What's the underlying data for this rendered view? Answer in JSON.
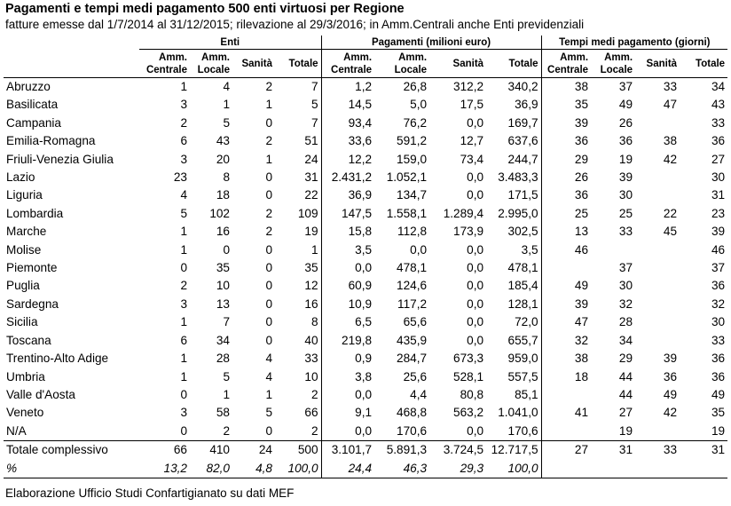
{
  "title": "Pagamenti e tempi medi pagamento 500 enti virtuosi per Regione",
  "subtitle": "fatture emesse dal 1/7/2014 al 31/12/2015; rilevazione al 29/3/2016; in Amm.Centrali anche Enti previdenziali",
  "groups": {
    "enti": "Enti",
    "pagamenti": "Pagamenti (milioni euro)",
    "tempi": "Tempi medi pagamento (giorni)"
  },
  "sub": {
    "amm_c1": "Amm.",
    "amm_c2": "Centrale",
    "amm_l1": "Amm.",
    "amm_l2": "Locale",
    "sanita": "Sanità",
    "totale": "Totale"
  },
  "rows": [
    [
      "Abruzzo",
      "1",
      "4",
      "2",
      "7",
      "1,2",
      "26,8",
      "312,2",
      "340,2",
      "38",
      "37",
      "33",
      "34"
    ],
    [
      "Basilicata",
      "3",
      "1",
      "1",
      "5",
      "14,5",
      "5,0",
      "17,5",
      "36,9",
      "35",
      "49",
      "47",
      "43"
    ],
    [
      "Campania",
      "2",
      "5",
      "0",
      "7",
      "93,4",
      "76,2",
      "0,0",
      "169,7",
      "39",
      "26",
      "",
      "33"
    ],
    [
      "Emilia-Romagna",
      "6",
      "43",
      "2",
      "51",
      "33,6",
      "591,2",
      "12,7",
      "637,6",
      "36",
      "36",
      "38",
      "36"
    ],
    [
      "Friuli-Venezia Giulia",
      "3",
      "20",
      "1",
      "24",
      "12,2",
      "159,0",
      "73,4",
      "244,7",
      "29",
      "19",
      "42",
      "27"
    ],
    [
      "Lazio",
      "23",
      "8",
      "0",
      "31",
      "2.431,2",
      "1.052,1",
      "0,0",
      "3.483,3",
      "26",
      "39",
      "",
      "30"
    ],
    [
      "Liguria",
      "4",
      "18",
      "0",
      "22",
      "36,9",
      "134,7",
      "0,0",
      "171,5",
      "36",
      "30",
      "",
      "31"
    ],
    [
      "Lombardia",
      "5",
      "102",
      "2",
      "109",
      "147,5",
      "1.558,1",
      "1.289,4",
      "2.995,0",
      "25",
      "25",
      "22",
      "23"
    ],
    [
      "Marche",
      "1",
      "16",
      "2",
      "19",
      "15,8",
      "112,8",
      "173,9",
      "302,5",
      "13",
      "33",
      "45",
      "39"
    ],
    [
      "Molise",
      "1",
      "0",
      "0",
      "1",
      "3,5",
      "0,0",
      "0,0",
      "3,5",
      "46",
      "",
      "",
      "46"
    ],
    [
      "Piemonte",
      "0",
      "35",
      "0",
      "35",
      "0,0",
      "478,1",
      "0,0",
      "478,1",
      "",
      "37",
      "",
      "37"
    ],
    [
      "Puglia",
      "2",
      "10",
      "0",
      "12",
      "60,9",
      "124,6",
      "0,0",
      "185,4",
      "49",
      "30",
      "",
      "36"
    ],
    [
      "Sardegna",
      "3",
      "13",
      "0",
      "16",
      "10,9",
      "117,2",
      "0,0",
      "128,1",
      "39",
      "32",
      "",
      "32"
    ],
    [
      "Sicilia",
      "1",
      "7",
      "0",
      "8",
      "6,5",
      "65,6",
      "0,0",
      "72,0",
      "47",
      "28",
      "",
      "30"
    ],
    [
      "Toscana",
      "6",
      "34",
      "0",
      "40",
      "219,8",
      "435,9",
      "0,0",
      "655,7",
      "32",
      "34",
      "",
      "33"
    ],
    [
      "Trentino-Alto Adige",
      "1",
      "28",
      "4",
      "33",
      "0,9",
      "284,7",
      "673,3",
      "959,0",
      "38",
      "29",
      "39",
      "36"
    ],
    [
      "Umbria",
      "1",
      "5",
      "4",
      "10",
      "3,8",
      "25,6",
      "528,1",
      "557,5",
      "18",
      "44",
      "36",
      "36"
    ],
    [
      "Valle d'Aosta",
      "0",
      "1",
      "1",
      "2",
      "0,0",
      "4,4",
      "80,8",
      "85,1",
      "",
      "44",
      "49",
      "49"
    ],
    [
      "Veneto",
      "3",
      "58",
      "5",
      "66",
      "9,1",
      "468,8",
      "563,2",
      "1.041,0",
      "41",
      "27",
      "42",
      "35"
    ],
    [
      "N/A",
      "0",
      "2",
      "0",
      "2",
      "0,0",
      "170,6",
      "0,0",
      "170,6",
      "",
      "19",
      "",
      "19"
    ]
  ],
  "total_row": [
    "Totale complessivo",
    "66",
    "410",
    "24",
    "500",
    "3.101,7",
    "5.891,3",
    "3.724,5",
    "12.717,5",
    "27",
    "31",
    "33",
    "31"
  ],
  "pct_row": [
    "%",
    "13,2",
    "82,0",
    "4,8",
    "100,0",
    "24,4",
    "46,3",
    "29,3",
    "100,0",
    "",
    "",
    "",
    ""
  ],
  "footer": "Elaborazione Ufficio Studi Confartigianato su dati MEF"
}
